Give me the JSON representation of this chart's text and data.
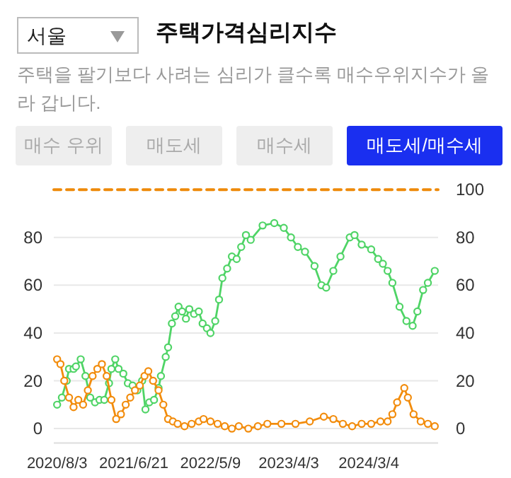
{
  "chart_data": {
    "type": "line",
    "title": "주택가격심리지수",
    "subtitle": "주택을 팔기보다 사려는 심리가 클수록 매수우위지수가 올라 갑니다.",
    "annotations": [
      "서울",
      "매수 우위",
      "매도세",
      "매수세",
      "매도세/매수세"
    ],
    "xlim": [
      "2020-07-20",
      "2024-12-20"
    ],
    "xticks": [
      {
        "value": "2020-08-03",
        "label": "2020/8/3"
      },
      {
        "value": "2021-06-21",
        "label": "2021/6/21"
      },
      {
        "value": "2022-05-09",
        "label": "2022/5/9"
      },
      {
        "value": "2023-04-03",
        "label": "2023/4/3"
      },
      {
        "value": "2024-03-04",
        "label": "2024/3/4"
      }
    ],
    "ylim": [
      -6,
      101
    ],
    "yticks": [
      0,
      20,
      40,
      60,
      80
    ],
    "y2lim": [
      -6,
      101
    ],
    "y2ticks": [
      0,
      20,
      40,
      60,
      80,
      100
    ],
    "grid": "y",
    "marker": "circle",
    "line_style": "solid",
    "series": [
      {
        "color": "#ee8a0a",
        "line_style": "dashed",
        "marker": "none",
        "x": [
          "2020-07-20",
          "2024-12-20"
        ],
        "values": [
          100,
          100
        ]
      },
      {
        "color": "#4fd466",
        "x": [
          "2020-08-03",
          "2020-08-23",
          "2020-09-12",
          "2020-09-22",
          "2020-10-11",
          "2020-10-21",
          "2020-11-10",
          "2020-11-30",
          "2020-12-20",
          "2021-01-09",
          "2021-01-28",
          "2021-02-17",
          "2021-03-09",
          "2021-03-19",
          "2021-04-04",
          "2021-04-18",
          "2021-05-08",
          "2021-05-27",
          "2021-06-16",
          "2021-07-06",
          "2021-07-26",
          "2021-08-09",
          "2021-08-25",
          "2021-09-14",
          "2021-10-03",
          "2021-10-13",
          "2021-11-02",
          "2021-11-12",
          "2021-11-28",
          "2021-12-12",
          "2021-12-26",
          "2022-01-10",
          "2022-01-26",
          "2022-02-09",
          "2022-03-01",
          "2022-03-21",
          "2022-04-06",
          "2022-04-24",
          "2022-05-09",
          "2022-05-29",
          "2022-06-14",
          "2022-06-28",
          "2022-07-18",
          "2022-08-07",
          "2022-08-27",
          "2022-09-15",
          "2022-10-05",
          "2022-10-25",
          "2022-12-14",
          "2023-02-01",
          "2023-03-13",
          "2023-04-12",
          "2023-05-11",
          "2023-06-10",
          "2023-07-20",
          "2023-08-18",
          "2023-09-07",
          "2023-10-07",
          "2023-11-06",
          "2023-12-15",
          "2024-01-04",
          "2024-02-03",
          "2024-03-14",
          "2024-04-12",
          "2024-05-02",
          "2024-05-22",
          "2024-06-11",
          "2024-07-11",
          "2024-08-09",
          "2024-09-04",
          "2024-09-24",
          "2024-10-18",
          "2024-11-07",
          "2024-12-06"
        ],
        "values": [
          10,
          13,
          20,
          25,
          25,
          26,
          29,
          22,
          13,
          11,
          12,
          12,
          19,
          25,
          29,
          25,
          23,
          19,
          18,
          16,
          20,
          8,
          11,
          12,
          17,
          22,
          30,
          34,
          44,
          47,
          51,
          49,
          46,
          50,
          48,
          49,
          44,
          42,
          40,
          45,
          54,
          63,
          67,
          72,
          71,
          76,
          81,
          79,
          85,
          86,
          84,
          80,
          76,
          74,
          68,
          60,
          59,
          66,
          72,
          80,
          81,
          77,
          75,
          71,
          69,
          66,
          61,
          51,
          45,
          43,
          49,
          58,
          61,
          66
        ]
      },
      {
        "color": "#f28c0c",
        "x": [
          "2020-08-03",
          "2020-08-17",
          "2020-09-02",
          "2020-09-22",
          "2020-10-11",
          "2020-10-31",
          "2020-11-20",
          "2020-12-10",
          "2020-12-30",
          "2021-01-19",
          "2021-02-07",
          "2021-02-27",
          "2021-03-19",
          "2021-04-08",
          "2021-04-28",
          "2021-05-18",
          "2021-06-06",
          "2021-06-26",
          "2021-07-16",
          "2021-08-05",
          "2021-08-21",
          "2021-09-10",
          "2021-10-03",
          "2021-10-23",
          "2021-11-12",
          "2021-12-02",
          "2021-12-22",
          "2022-01-20",
          "2022-02-19",
          "2022-03-21",
          "2022-04-10",
          "2022-05-09",
          "2022-06-08",
          "2022-07-08",
          "2022-08-07",
          "2022-09-05",
          "2022-10-15",
          "2022-11-24",
          "2023-01-03",
          "2023-03-03",
          "2023-05-01",
          "2023-06-30",
          "2023-08-28",
          "2023-10-07",
          "2023-11-16",
          "2023-12-25",
          "2024-02-03",
          "2024-03-14",
          "2024-04-22",
          "2024-05-22",
          "2024-06-11",
          "2024-07-01",
          "2024-07-31",
          "2024-08-15",
          "2024-09-08",
          "2024-10-08",
          "2024-11-07",
          "2024-12-06"
        ],
        "values": [
          29,
          27,
          20,
          13,
          9,
          12,
          10,
          16,
          22,
          25,
          27,
          22,
          12,
          4,
          6,
          10,
          13,
          16,
          18,
          22,
          24,
          20,
          16,
          10,
          4,
          3,
          2,
          1,
          2,
          3,
          4,
          3,
          2,
          1,
          0,
          1,
          0,
          1,
          2,
          2,
          2,
          3,
          5,
          4,
          2,
          1,
          2,
          2,
          3,
          3,
          6,
          11,
          17,
          13,
          6,
          3,
          2,
          1
        ]
      }
    ]
  }
}
